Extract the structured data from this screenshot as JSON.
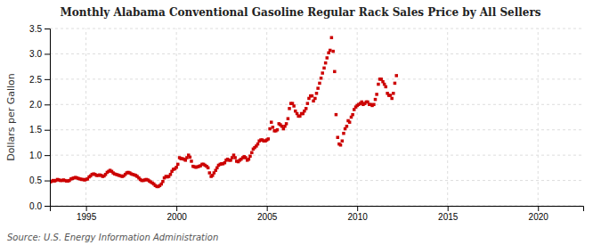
{
  "chart_data": {
    "type": "scatter",
    "title": "Monthly Alabama Conventional Gasoline Regular Rack Sales Price by All Sellers",
    "y_label": "Dollars per Gallon",
    "annotations": [
      "Source: U.S. Energy Information Administration"
    ],
    "color": "#cc0000",
    "marker": "square",
    "grid": true,
    "xlim": [
      1993.0,
      2022.5
    ],
    "ylim": [
      0.0,
      3.5
    ],
    "xticks": [
      1995,
      2000,
      2005,
      2010,
      2015,
      2020
    ],
    "yticks": [
      {
        "value": 0.0,
        "label": "0.0"
      },
      0.5,
      {
        "value": 1.0,
        "label": "1.0"
      },
      1.5,
      {
        "value": 2.0,
        "label": "2.0"
      },
      2.5,
      {
        "value": 3.0,
        "label": "3.0"
      },
      3.5
    ],
    "x": [
      1993.0,
      1993.08,
      1993.17,
      1993.25,
      1993.33,
      1993.42,
      1993.5,
      1993.58,
      1993.67,
      1993.75,
      1993.83,
      1993.92,
      1994.0,
      1994.08,
      1994.17,
      1994.25,
      1994.33,
      1994.42,
      1994.5,
      1994.58,
      1994.67,
      1994.75,
      1994.83,
      1994.92,
      1995.0,
      1995.08,
      1995.17,
      1995.25,
      1995.33,
      1995.42,
      1995.5,
      1995.58,
      1995.67,
      1995.75,
      1995.83,
      1995.92,
      1996.0,
      1996.08,
      1996.17,
      1996.25,
      1996.33,
      1996.42,
      1996.5,
      1996.58,
      1996.67,
      1996.75,
      1996.83,
      1996.92,
      1997.0,
      1997.08,
      1997.17,
      1997.25,
      1997.33,
      1997.42,
      1997.5,
      1997.58,
      1997.67,
      1997.75,
      1997.83,
      1997.92,
      1998.0,
      1998.08,
      1998.17,
      1998.25,
      1998.33,
      1998.42,
      1998.5,
      1998.58,
      1998.67,
      1998.75,
      1998.83,
      1998.92,
      1999.0,
      1999.08,
      1999.17,
      1999.25,
      1999.33,
      1999.42,
      1999.5,
      1999.58,
      1999.67,
      1999.75,
      1999.83,
      1999.92,
      2000.0,
      2000.08,
      2000.17,
      2000.25,
      2000.33,
      2000.42,
      2000.5,
      2000.58,
      2000.67,
      2000.75,
      2000.83,
      2000.92,
      2001.0,
      2001.08,
      2001.17,
      2001.25,
      2001.33,
      2001.42,
      2001.5,
      2001.58,
      2001.67,
      2001.75,
      2001.83,
      2001.92,
      2002.0,
      2002.08,
      2002.17,
      2002.25,
      2002.33,
      2002.42,
      2002.5,
      2002.58,
      2002.67,
      2002.75,
      2002.83,
      2002.92,
      2003.0,
      2003.08,
      2003.17,
      2003.25,
      2003.33,
      2003.42,
      2003.5,
      2003.58,
      2003.67,
      2003.75,
      2003.83,
      2003.92,
      2004.0,
      2004.08,
      2004.17,
      2004.25,
      2004.33,
      2004.42,
      2004.5,
      2004.58,
      2004.67,
      2004.75,
      2004.83,
      2004.92,
      2005.0,
      2005.08,
      2005.17,
      2005.25,
      2005.33,
      2005.42,
      2005.5,
      2005.58,
      2005.67,
      2005.75,
      2005.83,
      2005.92,
      2006.0,
      2006.08,
      2006.17,
      2006.25,
      2006.33,
      2006.42,
      2006.5,
      2006.58,
      2006.67,
      2006.75,
      2006.83,
      2006.92,
      2007.0,
      2007.08,
      2007.17,
      2007.25,
      2007.33,
      2007.42,
      2007.5,
      2007.58,
      2007.67,
      2007.75,
      2007.83,
      2007.92,
      2008.0,
      2008.08,
      2008.17,
      2008.25,
      2008.33,
      2008.42,
      2008.5,
      2008.58,
      2008.67,
      2008.75,
      2008.83,
      2008.92,
      2009.0,
      2009.08,
      2009.17,
      2009.25,
      2009.33,
      2009.42,
      2009.5,
      2009.58,
      2009.67,
      2009.75,
      2009.83,
      2009.92,
      2010.0,
      2010.08,
      2010.17,
      2010.25,
      2010.33,
      2010.42,
      2010.5,
      2010.58,
      2010.67,
      2010.75,
      2010.83,
      2010.92,
      2011.0,
      2011.08,
      2011.17,
      2011.25,
      2011.33,
      2011.42,
      2011.5,
      2011.58,
      2011.67,
      2011.75,
      2011.83,
      2011.92,
      2012.0,
      2012.08,
      2012.17
    ],
    "values": [
      0.47,
      0.48,
      0.5,
      0.49,
      0.5,
      0.52,
      0.51,
      0.5,
      0.5,
      0.51,
      0.5,
      0.49,
      0.49,
      0.5,
      0.53,
      0.54,
      0.55,
      0.56,
      0.55,
      0.54,
      0.53,
      0.52,
      0.52,
      0.51,
      0.52,
      0.53,
      0.57,
      0.59,
      0.62,
      0.63,
      0.62,
      0.6,
      0.6,
      0.61,
      0.6,
      0.58,
      0.59,
      0.62,
      0.66,
      0.68,
      0.7,
      0.68,
      0.65,
      0.63,
      0.62,
      0.61,
      0.6,
      0.59,
      0.58,
      0.59,
      0.62,
      0.65,
      0.66,
      0.65,
      0.63,
      0.62,
      0.61,
      0.6,
      0.58,
      0.55,
      0.52,
      0.5,
      0.5,
      0.51,
      0.52,
      0.51,
      0.49,
      0.47,
      0.45,
      0.43,
      0.4,
      0.38,
      0.38,
      0.4,
      0.43,
      0.48,
      0.55,
      0.58,
      0.57,
      0.58,
      0.62,
      0.68,
      0.72,
      0.73,
      0.76,
      0.82,
      0.95,
      0.93,
      0.93,
      0.92,
      0.9,
      0.95,
      1.0,
      0.96,
      0.88,
      0.78,
      0.77,
      0.76,
      0.77,
      0.78,
      0.79,
      0.82,
      0.82,
      0.8,
      0.78,
      0.75,
      0.65,
      0.58,
      0.6,
      0.65,
      0.7,
      0.75,
      0.8,
      0.82,
      0.83,
      0.83,
      0.85,
      0.9,
      0.92,
      0.9,
      0.9,
      0.95,
      1.0,
      0.95,
      0.88,
      0.87,
      0.9,
      0.92,
      0.95,
      0.97,
      0.95,
      0.9,
      0.92,
      0.98,
      1.05,
      1.12,
      1.15,
      1.18,
      1.22,
      1.28,
      1.3,
      1.3,
      1.28,
      1.28,
      1.3,
      1.32,
      1.52,
      1.65,
      1.55,
      1.48,
      1.48,
      1.5,
      1.62,
      1.6,
      1.57,
      1.52,
      1.57,
      1.62,
      1.72,
      1.92,
      2.02,
      2.02,
      1.97,
      1.87,
      1.82,
      1.77,
      1.77,
      1.82,
      1.82,
      1.87,
      1.92,
      2.02,
      2.12,
      2.17,
      2.17,
      2.07,
      2.12,
      2.22,
      2.32,
      2.42,
      2.52,
      2.62,
      2.72,
      2.82,
      2.92,
      3.02,
      3.07,
      3.32,
      3.05,
      2.65,
      1.8,
      1.35,
      1.22,
      1.2,
      1.28,
      1.43,
      1.52,
      1.57,
      1.68,
      1.65,
      1.75,
      1.8,
      1.9,
      1.95,
      1.98,
      2.0,
      2.02,
      2.05,
      2.0,
      2.02,
      2.05,
      2.05,
      2.0,
      2.0,
      1.98,
      2.0,
      2.1,
      2.2,
      2.4,
      2.5,
      2.5,
      2.45,
      2.4,
      2.35,
      2.22,
      2.18,
      2.18,
      2.12,
      2.22,
      2.42,
      2.57
    ]
  }
}
